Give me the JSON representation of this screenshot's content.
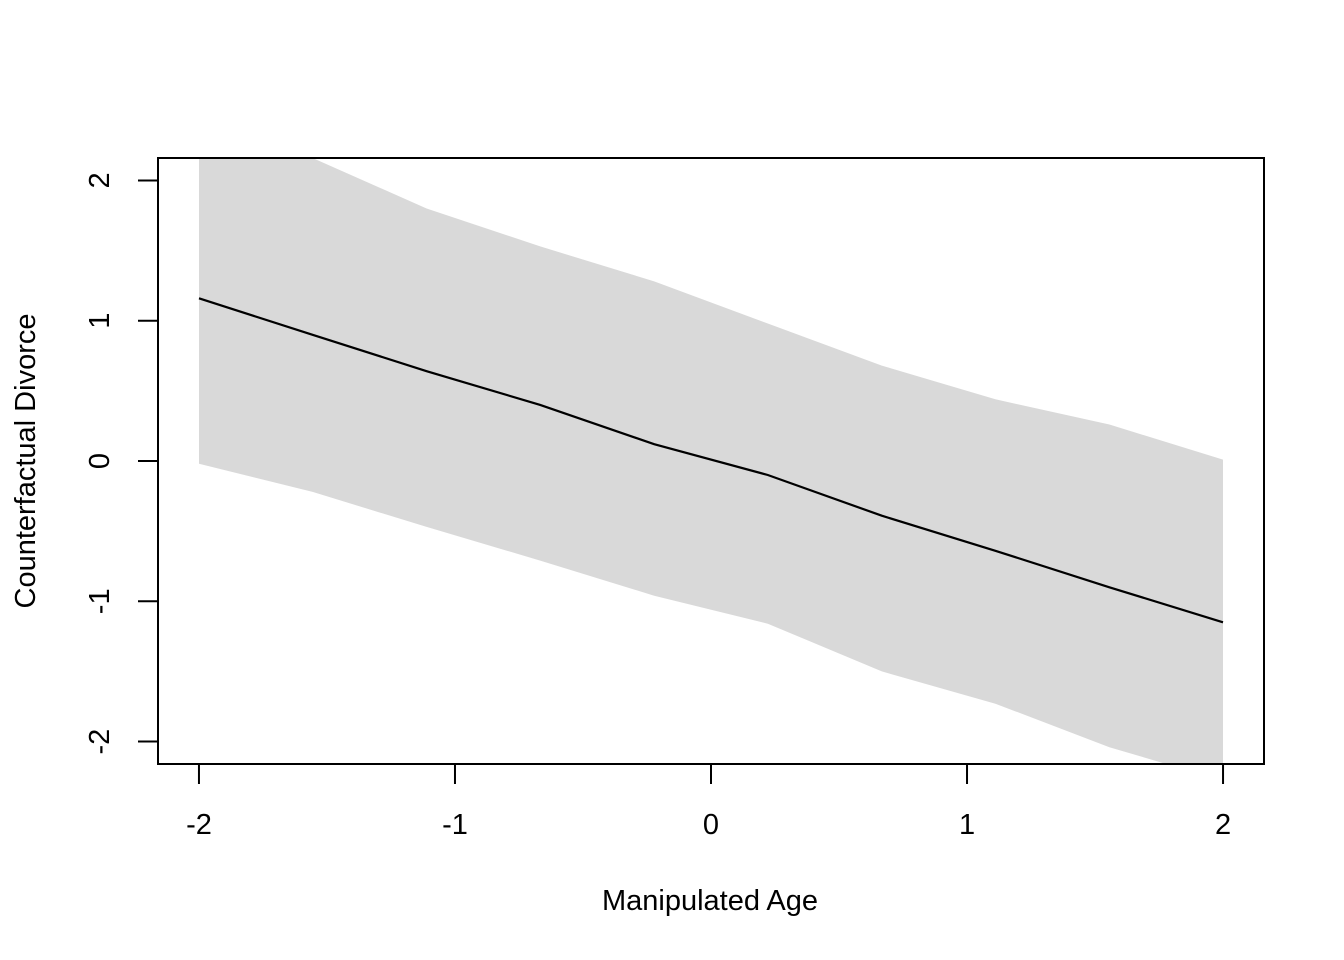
{
  "chart_data": {
    "type": "line",
    "title": "",
    "xlabel": "Manipulated Age",
    "ylabel": "Counterfactual Divorce",
    "xlim": [
      -2.16,
      2.16
    ],
    "ylim": [
      -2.16,
      2.16
    ],
    "x_ticks": [
      -2,
      -1,
      0,
      1,
      2
    ],
    "x_tick_labels": [
      "-2",
      "-1",
      "0",
      "1",
      "2"
    ],
    "y_ticks": [
      -2,
      -1,
      0,
      1,
      2
    ],
    "y_tick_labels": [
      "-2",
      "-1",
      "0",
      "1",
      "2"
    ],
    "grid": false,
    "legend": "none",
    "colors": {
      "line": "#000000",
      "band": "#d9d9d9",
      "frame": "#000000"
    },
    "x": [
      -2,
      -1.556,
      -1.111,
      -0.667,
      -0.222,
      0.222,
      0.667,
      1.111,
      1.556,
      2
    ],
    "series": [
      {
        "values": [
          1.16,
          0.9,
          0.64,
          0.4,
          0.12,
          -0.1,
          -0.39,
          -0.64,
          -0.9,
          -1.15
        ]
      }
    ],
    "interval": {
      "lower": [
        -0.02,
        -0.22,
        -0.47,
        -0.71,
        -0.96,
        -1.16,
        -1.5,
        -1.73,
        -2.04,
        -2.28
      ],
      "upper": [
        2.35,
        2.16,
        1.8,
        1.53,
        1.28,
        0.98,
        0.68,
        0.44,
        0.26,
        0.01
      ]
    }
  }
}
